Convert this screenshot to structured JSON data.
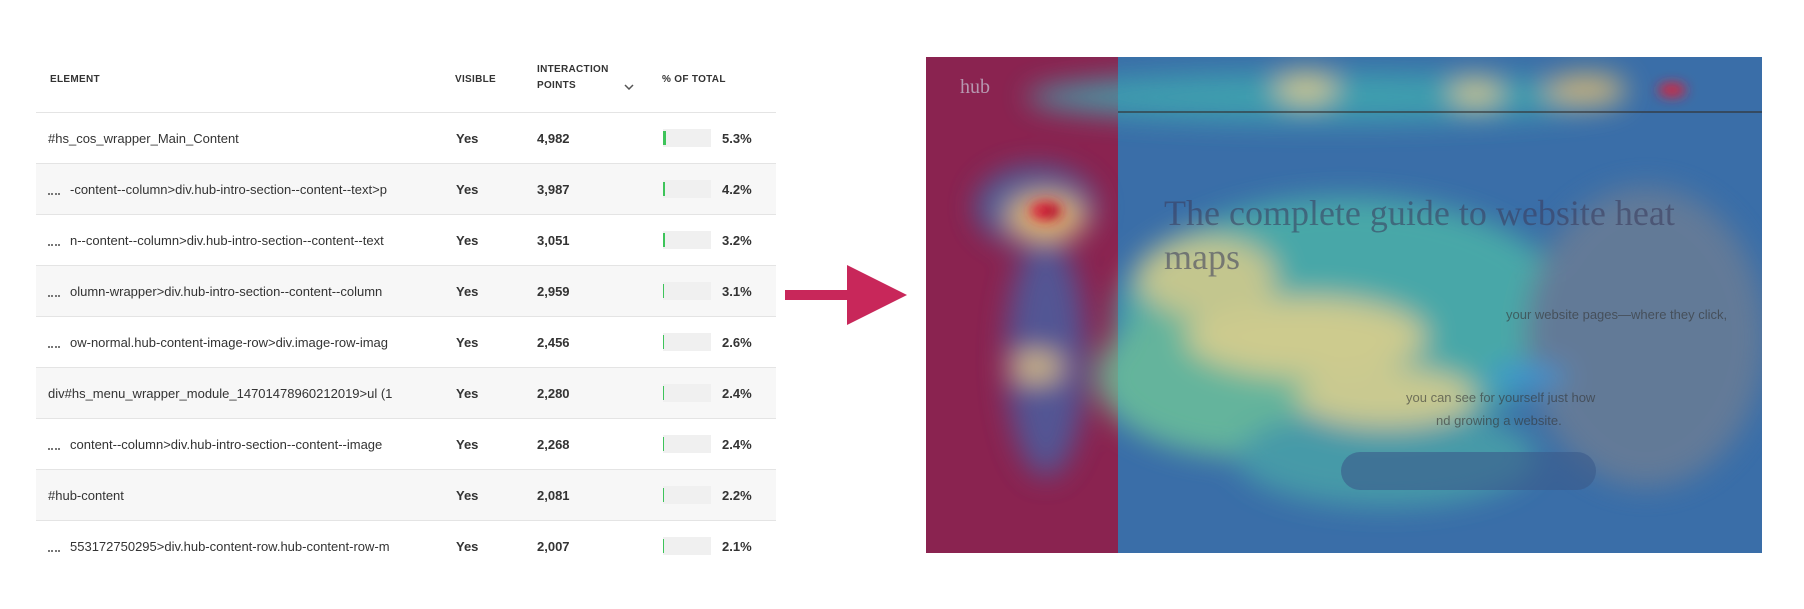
{
  "table": {
    "headers": {
      "element": "ELEMENT",
      "visible": "VISIBLE",
      "points": [
        "INTERACTION",
        "POINTS"
      ],
      "share": "% OF TOTAL"
    },
    "rows": [
      {
        "truncated": false,
        "element": "#hs_cos_wrapper_Main_Content",
        "visible": "Yes",
        "points": "4,982",
        "share": 5.3,
        "share_label": "5.3%"
      },
      {
        "truncated": true,
        "element": "-content--column>div.hub-intro-section--content--text>p",
        "visible": "Yes",
        "points": "3,987",
        "share": 4.2,
        "share_label": "4.2%"
      },
      {
        "truncated": true,
        "element": "n--content--column>div.hub-intro-section--content--text",
        "visible": "Yes",
        "points": "3,051",
        "share": 3.2,
        "share_label": "3.2%"
      },
      {
        "truncated": true,
        "element": "olumn-wrapper>div.hub-intro-section--content--column",
        "visible": "Yes",
        "points": "2,959",
        "share": 3.1,
        "share_label": "3.1%"
      },
      {
        "truncated": true,
        "element": "ow-normal.hub-content-image-row>div.image-row-imag",
        "visible": "Yes",
        "points": "2,456",
        "share": 2.6,
        "share_label": "2.6%"
      },
      {
        "truncated": false,
        "element": "div#hs_menu_wrapper_module_14701478960212019>ul (1",
        "visible": "Yes",
        "points": "2,280",
        "share": 2.4,
        "share_label": "2.4%"
      },
      {
        "truncated": true,
        "element": "content--column>div.hub-intro-section--content--image",
        "visible": "Yes",
        "points": "2,268",
        "share": 2.4,
        "share_label": "2.4%"
      },
      {
        "truncated": false,
        "element": "#hub-content",
        "visible": "Yes",
        "points": "2,081",
        "share": 2.2,
        "share_label": "2.2%"
      },
      {
        "truncated": true,
        "element": "553172750295>div.hub-content-row.hub-content-row-m",
        "visible": "Yes",
        "points": "2,007",
        "share": 2.1,
        "share_label": "2.1%"
      }
    ]
  },
  "heatmap": {
    "logo": "hub",
    "title": "The complete guide to website heat maps",
    "lines": [
      "your website pages—where they click,",
      "you can see for yourself just how",
      "nd growing a website."
    ]
  }
}
